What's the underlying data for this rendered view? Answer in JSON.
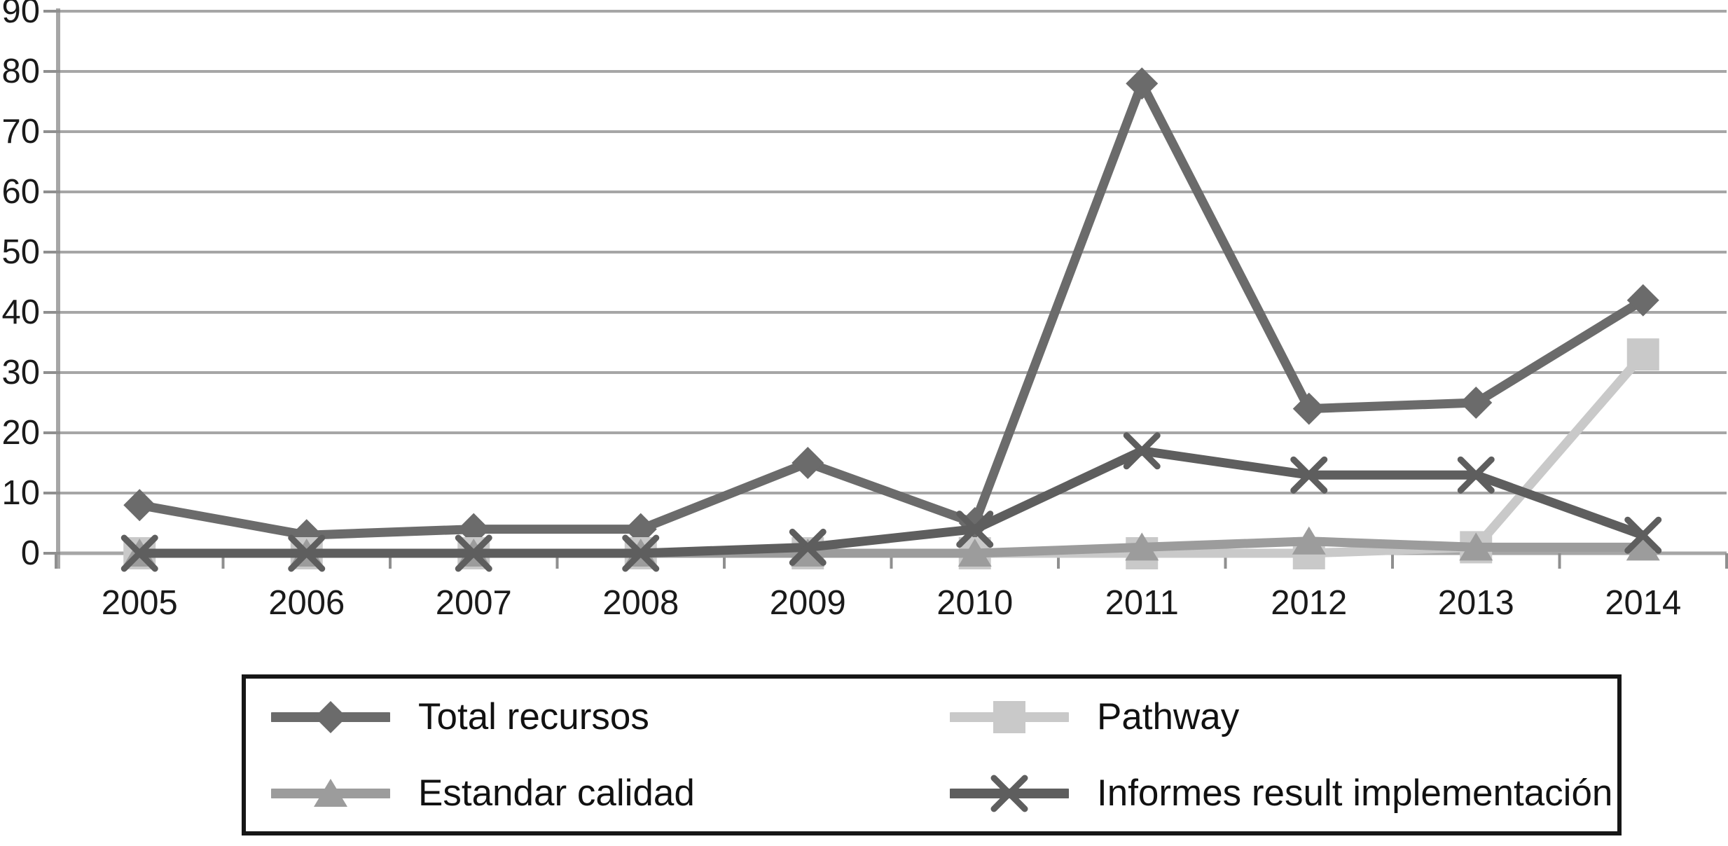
{
  "chart_data": {
    "type": "line",
    "title": "",
    "xlabel": "",
    "ylabel": "",
    "categories": [
      "2005",
      "2006",
      "2007",
      "2008",
      "2009",
      "2010",
      "2011",
      "2012",
      "2013",
      "2014"
    ],
    "series": [
      {
        "name": "Total recursos",
        "marker": "diamond",
        "color": "#6b6b6b",
        "values": [
          8,
          3,
          4,
          4,
          15,
          5,
          78,
          24,
          25,
          42
        ]
      },
      {
        "name": "Pathway",
        "marker": "square",
        "color": "#c9c9c9",
        "values": [
          0,
          0,
          0,
          0,
          0,
          0,
          0,
          0,
          1,
          33
        ]
      },
      {
        "name": "Estandar calidad",
        "marker": "triangle",
        "color": "#9c9c9c",
        "values": [
          0,
          0,
          0,
          0,
          0,
          0,
          1,
          2,
          1,
          1
        ]
      },
      {
        "name": "Informes result implementación",
        "marker": "x",
        "color": "#5e5e5e",
        "values": [
          0,
          0,
          0,
          0,
          1,
          4,
          17,
          13,
          13,
          3
        ]
      }
    ],
    "y_axis": {
      "min": 0,
      "max": 90,
      "step": 10,
      "tick_labels": [
        "0",
        "10",
        "20",
        "30",
        "40",
        "50",
        "60",
        "70",
        "80",
        "90"
      ]
    },
    "x_axis": {
      "tick_labels": [
        "2005",
        "2006",
        "2007",
        "2008",
        "2009",
        "2010",
        "2011",
        "2012",
        "2013",
        "2014"
      ]
    },
    "grid": true,
    "legend": {
      "position": "bottom",
      "columns": 2,
      "row_major_order": [
        "Total recursos",
        "Pathway",
        "Estandar calidad",
        "Informes result implementación"
      ]
    },
    "colors": {
      "gridline": "#a6a6a6",
      "axis": "#8f8f8f",
      "tick_text": "#1a1a1a",
      "background": "#ffffff",
      "legend_border": "#161616"
    }
  }
}
